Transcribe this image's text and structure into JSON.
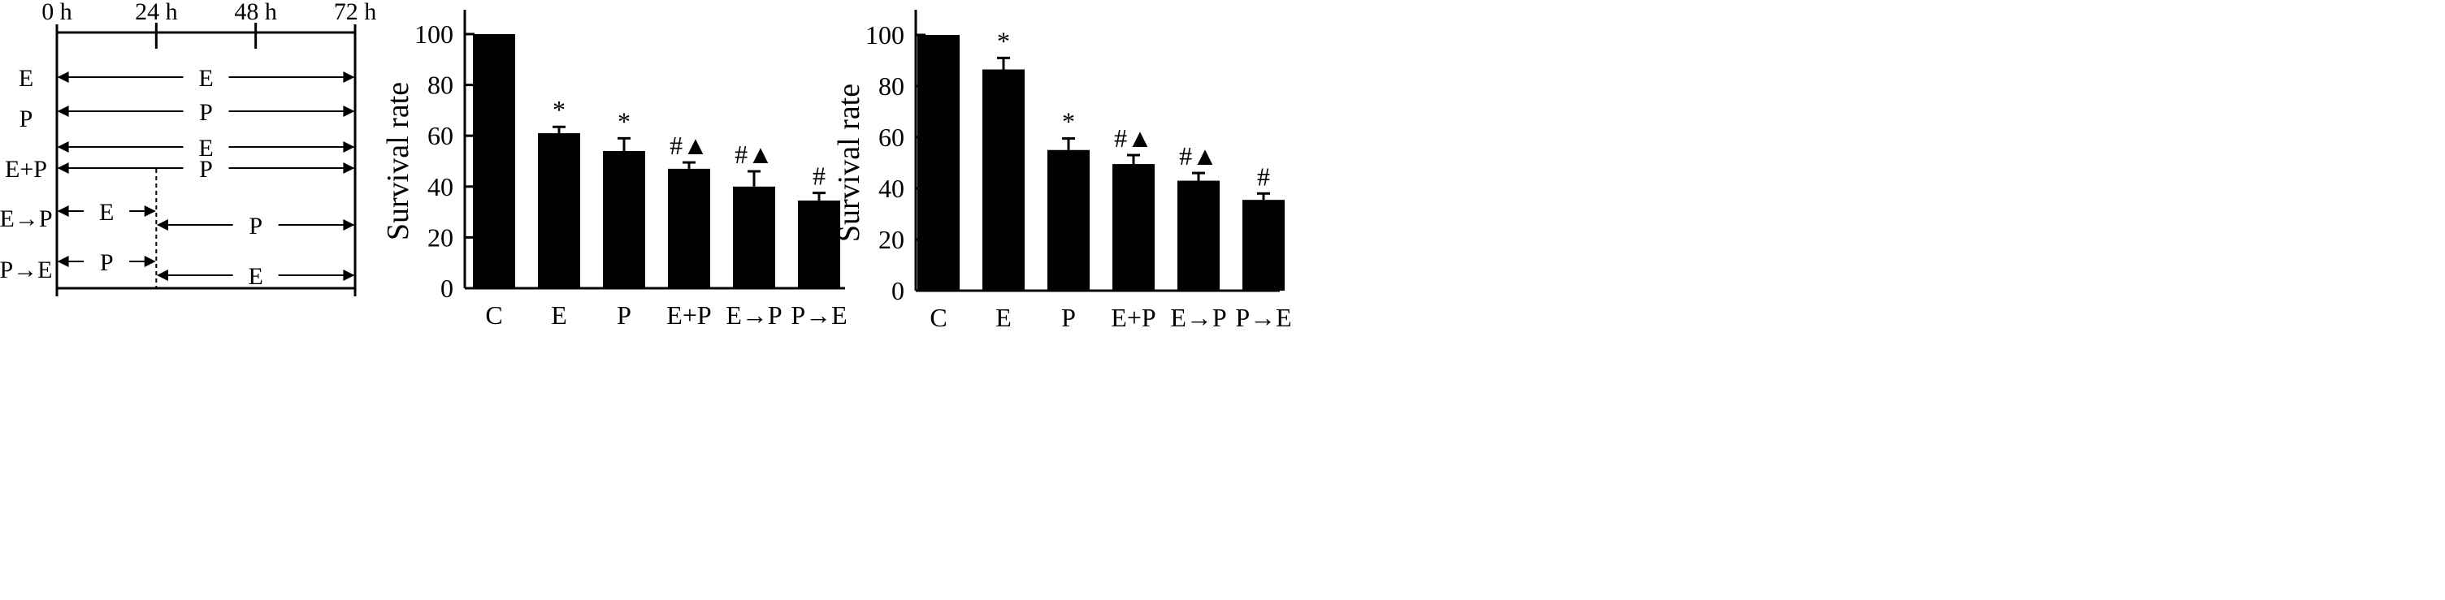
{
  "schedule": {
    "time_labels": [
      "0 h",
      "24 h",
      "48 h",
      "72 h"
    ],
    "time_values_h": [
      0,
      24,
      48,
      72
    ],
    "groups": [
      {
        "label": "E",
        "bars": [
          {
            "label": "E",
            "start_h": 0,
            "end_h": 72
          }
        ]
      },
      {
        "label": "P",
        "bars": [
          {
            "label": "P",
            "start_h": 0,
            "end_h": 72
          }
        ]
      },
      {
        "label": "E+P",
        "bars": [
          {
            "label": "E",
            "start_h": 0,
            "end_h": 72
          },
          {
            "label": "P",
            "start_h": 0,
            "end_h": 72
          }
        ]
      },
      {
        "label": "E→P",
        "bars": [
          {
            "label": "E",
            "start_h": 0,
            "end_h": 24
          },
          {
            "label": "P",
            "start_h": 24,
            "end_h": 72
          }
        ]
      },
      {
        "label": "P→E",
        "bars": [
          {
            "label": "P",
            "start_h": 0,
            "end_h": 24
          },
          {
            "label": "E",
            "start_h": 24,
            "end_h": 72
          }
        ]
      }
    ]
  },
  "chart_data": [
    {
      "type": "bar",
      "categories": [
        "C",
        "E",
        "P",
        "E+P",
        "E→P",
        "P→E"
      ],
      "values": [
        100,
        61,
        54,
        47,
        40,
        34.5
      ],
      "errors": [
        0,
        2.5,
        5,
        2.5,
        6,
        3
      ],
      "annotations": [
        "",
        "*",
        "*",
        "#▲",
        "#▲",
        "#"
      ],
      "ylabel": "Survival rate",
      "ylim": [
        0,
        100
      ],
      "yticks": [
        0,
        20,
        40,
        60,
        80,
        100
      ],
      "grid": false
    },
    {
      "type": "bar",
      "categories": [
        "C",
        "E",
        "P",
        "E+P",
        "E→P",
        "P→E"
      ],
      "values": [
        100,
        86.5,
        55,
        49.5,
        43,
        35.5
      ],
      "errors": [
        0,
        4.5,
        4.5,
        3.5,
        3,
        2.5
      ],
      "annotations": [
        "",
        "*",
        "*",
        "#▲",
        "#▲",
        "#"
      ],
      "ylabel": "Survival rate",
      "ylim": [
        0,
        100
      ],
      "yticks": [
        0,
        20,
        40,
        60,
        80,
        100
      ],
      "grid": false
    }
  ]
}
